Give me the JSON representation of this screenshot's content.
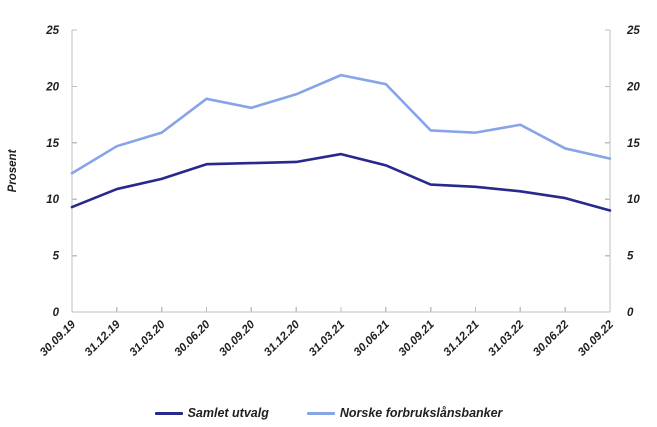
{
  "chart_data": {
    "type": "line",
    "title": "",
    "xlabel": "",
    "ylabel": "Prosent",
    "ylim": [
      0,
      25
    ],
    "yticks": [
      0,
      5,
      10,
      15,
      20,
      25
    ],
    "grid": false,
    "legend_position": "bottom",
    "axis_color": "#bfbfbf",
    "text_color": "#1f1f1f",
    "categories": [
      "30.09.19",
      "31.12.19",
      "31.03.20",
      "30.06.20",
      "30.09.20",
      "31.12.20",
      "31.03.21",
      "30.06.21",
      "30.09.21",
      "31.12.21",
      "31.03.22",
      "30.06.22",
      "30.09.22"
    ],
    "series": [
      {
        "name": "Samlet utvalg",
        "color": "#27298d",
        "values": [
          9.3,
          10.9,
          11.8,
          13.1,
          13.2,
          13.3,
          14.0,
          13.0,
          11.3,
          11.1,
          10.7,
          10.1,
          9.0
        ]
      },
      {
        "name": "Norske forbrukslånsbanker",
        "color": "#88a4e8",
        "values": [
          12.3,
          14.7,
          15.9,
          18.9,
          18.1,
          19.3,
          21.0,
          20.2,
          16.1,
          15.9,
          16.6,
          14.5,
          13.6
        ]
      }
    ]
  }
}
